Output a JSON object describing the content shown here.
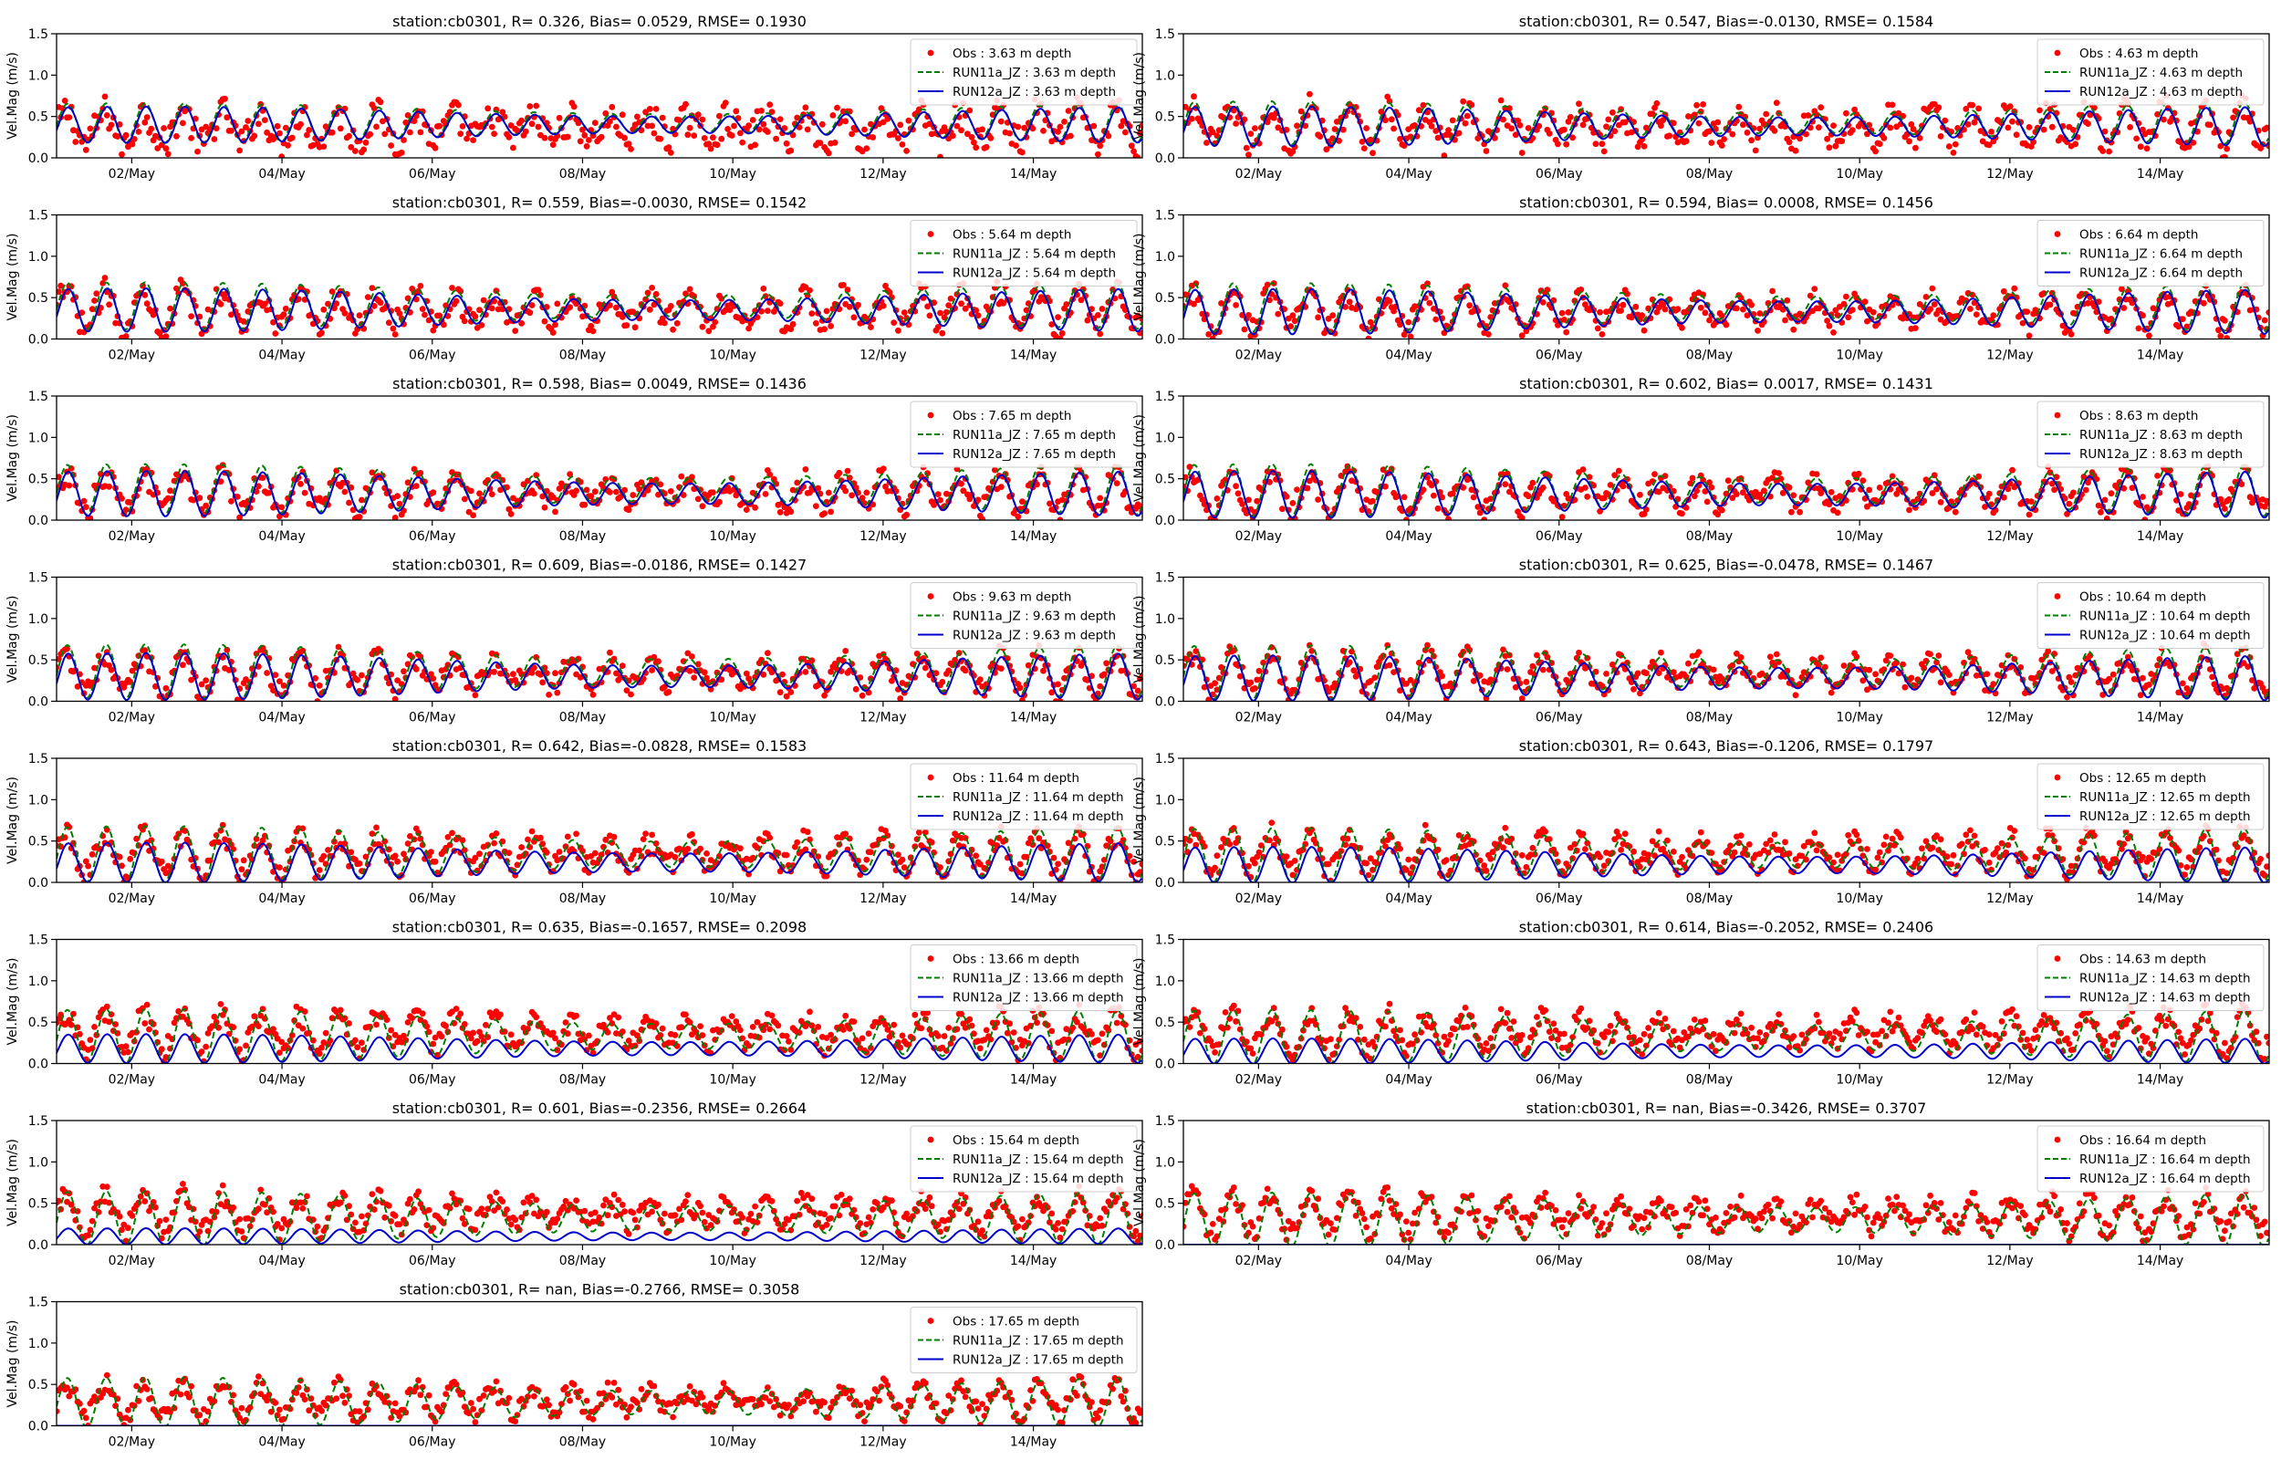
{
  "colors": {
    "obs": "#ff0000",
    "run11a": "#008000",
    "run12a": "#0000cc",
    "axis": "#000000",
    "background": "#ffffff"
  },
  "shared": {
    "type": "scatter+line",
    "ylabel": "Vel.Mag (m/s)",
    "ylim": [
      0,
      1.5
    ],
    "yticks": [
      "0.0",
      "0.5",
      "1.0",
      "1.5"
    ],
    "xlim": [
      1,
      15.45
    ],
    "xtick_values": [
      2,
      4,
      6,
      8,
      10,
      12,
      14
    ],
    "xtick_labels": [
      "02/May",
      "04/May",
      "06/May",
      "08/May",
      "10/May",
      "12/May",
      "14/May"
    ],
    "legend_position": "top-right",
    "grid": false
  },
  "chart_data": [
    {
      "title": "station:cb0301, R= 0.326, Bias= 0.0529, RMSE= 0.1930",
      "depth": 3.63,
      "legend": [
        "Obs : 3.63 m depth",
        "RUN11a_JZ : 3.63 m depth",
        "RUN12a_JZ : 3.63 m depth"
      ],
      "series": [
        {
          "name": "Obs : 3.63 m depth",
          "mean": 0.36,
          "amp": 0.18,
          "noise": 0.2
        },
        {
          "name": "RUN11a_JZ : 3.63 m depth",
          "mean": 0.42,
          "amp": 0.22
        },
        {
          "name": "RUN12a_JZ : 3.63 m depth",
          "mean": 0.4,
          "amp": 0.2
        }
      ]
    },
    {
      "title": "station:cb0301, R= 0.547, Bias=-0.0130, RMSE= 0.1584",
      "depth": 4.63,
      "legend": [
        "Obs : 4.63 m depth",
        "RUN11a_JZ : 4.63 m depth",
        "RUN12a_JZ : 4.63 m depth"
      ],
      "series": [
        {
          "name": "Obs : 4.63 m depth",
          "mean": 0.38,
          "amp": 0.2,
          "noise": 0.18
        },
        {
          "name": "RUN11a_JZ : 4.63 m depth",
          "mean": 0.42,
          "amp": 0.24
        },
        {
          "name": "RUN12a_JZ : 4.63 m depth",
          "mean": 0.38,
          "amp": 0.22
        }
      ]
    },
    {
      "title": "station:cb0301, R= 0.559, Bias=-0.0030, RMSE= 0.1542",
      "depth": 5.64,
      "legend": [
        "Obs : 5.64 m depth",
        "RUN11a_JZ : 5.64 m depth",
        "RUN12a_JZ : 5.64 m depth"
      ],
      "series": [
        {
          "name": "Obs : 5.64 m depth",
          "mean": 0.36,
          "amp": 0.2,
          "noise": 0.16
        },
        {
          "name": "RUN11a_JZ : 5.64 m depth",
          "mean": 0.4,
          "amp": 0.26
        },
        {
          "name": "RUN12a_JZ : 5.64 m depth",
          "mean": 0.35,
          "amp": 0.24
        }
      ]
    },
    {
      "title": "station:cb0301, R= 0.594, Bias= 0.0008, RMSE= 0.1456",
      "depth": 6.64,
      "legend": [
        "Obs : 6.64 m depth",
        "RUN11a_JZ : 6.64 m depth",
        "RUN12a_JZ : 6.64 m depth"
      ],
      "series": [
        {
          "name": "Obs : 6.64 m depth",
          "mean": 0.34,
          "amp": 0.2,
          "noise": 0.15
        },
        {
          "name": "RUN11a_JZ : 6.64 m depth",
          "mean": 0.38,
          "amp": 0.27
        },
        {
          "name": "RUN12a_JZ : 6.64 m depth",
          "mean": 0.33,
          "amp": 0.25
        }
      ]
    },
    {
      "title": "station:cb0301, R= 0.598, Bias= 0.0049, RMSE= 0.1436",
      "depth": 7.65,
      "legend": [
        "Obs : 7.65 m depth",
        "RUN11a_JZ : 7.65 m depth",
        "RUN12a_JZ : 7.65 m depth"
      ],
      "series": [
        {
          "name": "Obs : 7.65 m depth",
          "mean": 0.33,
          "amp": 0.2,
          "noise": 0.15
        },
        {
          "name": "RUN11a_JZ : 7.65 m depth",
          "mean": 0.37,
          "amp": 0.28
        },
        {
          "name": "RUN12a_JZ : 7.65 m depth",
          "mean": 0.32,
          "amp": 0.25
        }
      ]
    },
    {
      "title": "station:cb0301, R= 0.602, Bias= 0.0017, RMSE= 0.1431",
      "depth": 8.63,
      "legend": [
        "Obs : 8.63 m depth",
        "RUN11a_JZ : 8.63 m depth",
        "RUN12a_JZ : 8.63 m depth"
      ],
      "series": [
        {
          "name": "Obs : 8.63 m depth",
          "mean": 0.33,
          "amp": 0.2,
          "noise": 0.15
        },
        {
          "name": "RUN11a_JZ : 8.63 m depth",
          "mean": 0.36,
          "amp": 0.29
        },
        {
          "name": "RUN12a_JZ : 8.63 m depth",
          "mean": 0.31,
          "amp": 0.26
        }
      ]
    },
    {
      "title": "station:cb0301, R= 0.609, Bias=-0.0186, RMSE= 0.1427",
      "depth": 9.63,
      "legend": [
        "Obs : 9.63 m depth",
        "RUN11a_JZ : 9.63 m depth",
        "RUN12a_JZ : 9.63 m depth"
      ],
      "series": [
        {
          "name": "Obs : 9.63 m depth",
          "mean": 0.33,
          "amp": 0.21,
          "noise": 0.14
        },
        {
          "name": "RUN11a_JZ : 9.63 m depth",
          "mean": 0.36,
          "amp": 0.3
        },
        {
          "name": "RUN12a_JZ : 9.63 m depth",
          "mean": 0.3,
          "amp": 0.26
        }
      ]
    },
    {
      "title": "station:cb0301, R= 0.625, Bias=-0.0478, RMSE= 0.1467",
      "depth": 10.64,
      "legend": [
        "Obs : 10.64 m depth",
        "RUN11a_JZ : 10.64 m depth",
        "RUN12a_JZ : 10.64 m depth"
      ],
      "series": [
        {
          "name": "Obs : 10.64 m depth",
          "mean": 0.34,
          "amp": 0.21,
          "noise": 0.14
        },
        {
          "name": "RUN11a_JZ : 10.64 m depth",
          "mean": 0.35,
          "amp": 0.3
        },
        {
          "name": "RUN12a_JZ : 10.64 m depth",
          "mean": 0.28,
          "amp": 0.25
        }
      ]
    },
    {
      "title": "station:cb0301, R= 0.642, Bias=-0.0828, RMSE= 0.1583",
      "depth": 11.64,
      "legend": [
        "Obs : 11.64 m depth",
        "RUN11a_JZ : 11.64 m depth",
        "RUN12a_JZ : 11.64 m depth"
      ],
      "series": [
        {
          "name": "Obs : 11.64 m depth",
          "mean": 0.35,
          "amp": 0.21,
          "noise": 0.14
        },
        {
          "name": "RUN11a_JZ : 11.64 m depth",
          "mean": 0.34,
          "amp": 0.31
        },
        {
          "name": "RUN12a_JZ : 11.64 m depth",
          "mean": 0.24,
          "amp": 0.22
        }
      ]
    },
    {
      "title": "station:cb0301, R= 0.643, Bias=-0.1206, RMSE= 0.1797",
      "depth": 12.65,
      "legend": [
        "Obs : 12.65 m depth",
        "RUN11a_JZ : 12.65 m depth",
        "RUN12a_JZ : 12.65 m depth"
      ],
      "series": [
        {
          "name": "Obs : 12.65 m depth",
          "mean": 0.36,
          "amp": 0.21,
          "noise": 0.14
        },
        {
          "name": "RUN11a_JZ : 12.65 m depth",
          "mean": 0.33,
          "amp": 0.3
        },
        {
          "name": "RUN12a_JZ : 12.65 m depth",
          "mean": 0.21,
          "amp": 0.2
        }
      ]
    },
    {
      "title": "station:cb0301, R= 0.635, Bias=-0.1657, RMSE= 0.2098",
      "depth": 13.66,
      "legend": [
        "Obs : 13.66 m depth",
        "RUN11a_JZ : 13.66 m depth",
        "RUN12a_JZ : 13.66 m depth"
      ],
      "series": [
        {
          "name": "Obs : 13.66 m depth",
          "mean": 0.38,
          "amp": 0.21,
          "noise": 0.14
        },
        {
          "name": "RUN11a_JZ : 13.66 m depth",
          "mean": 0.33,
          "amp": 0.3
        },
        {
          "name": "RUN12a_JZ : 13.66 m depth",
          "mean": 0.18,
          "amp": 0.16
        }
      ]
    },
    {
      "title": "station:cb0301, R= 0.614, Bias=-0.2052, RMSE= 0.2406",
      "depth": 14.63,
      "legend": [
        "Obs : 14.63 m depth",
        "RUN11a_JZ : 14.63 m depth",
        "RUN12a_JZ : 14.63 m depth"
      ],
      "series": [
        {
          "name": "Obs : 14.63 m depth",
          "mean": 0.38,
          "amp": 0.21,
          "noise": 0.14
        },
        {
          "name": "RUN11a_JZ : 14.63 m depth",
          "mean": 0.32,
          "amp": 0.3
        },
        {
          "name": "RUN12a_JZ : 14.63 m depth",
          "mean": 0.15,
          "amp": 0.14
        }
      ]
    },
    {
      "title": "station:cb0301, R= 0.601, Bias=-0.2356, RMSE= 0.2664",
      "depth": 15.64,
      "legend": [
        "Obs : 15.64 m depth",
        "RUN11a_JZ : 15.64 m depth",
        "RUN12a_JZ : 15.64 m depth"
      ],
      "series": [
        {
          "name": "Obs : 15.64 m depth",
          "mean": 0.38,
          "amp": 0.2,
          "noise": 0.14
        },
        {
          "name": "RUN11a_JZ : 15.64 m depth",
          "mean": 0.32,
          "amp": 0.3
        },
        {
          "name": "RUN12a_JZ : 15.64 m depth",
          "mean": 0.1,
          "amp": 0.09
        }
      ]
    },
    {
      "title": "station:cb0301, R=   nan, Bias=-0.3426, RMSE= 0.3707",
      "depth": 16.64,
      "legend": [
        "Obs : 16.64 m depth",
        "RUN11a_JZ : 16.64 m depth",
        "RUN12a_JZ : 16.64 m depth"
      ],
      "series": [
        {
          "name": "Obs : 16.64 m depth",
          "mean": 0.36,
          "amp": 0.2,
          "noise": 0.14
        },
        {
          "name": "RUN11a_JZ : 16.64 m depth",
          "mean": 0.3,
          "amp": 0.3
        },
        {
          "name": "RUN12a_JZ : 16.64 m depth",
          "mean": 0.0,
          "amp": 0.0
        }
      ]
    },
    {
      "title": "station:cb0301, R=   nan, Bias=-0.2766, RMSE= 0.3058",
      "depth": 17.65,
      "legend": [
        "Obs : 17.65 m depth",
        "RUN11a_JZ : 17.65 m depth",
        "RUN12a_JZ : 17.65 m depth"
      ],
      "series": [
        {
          "name": "Obs : 17.65 m depth",
          "mean": 0.3,
          "amp": 0.18,
          "noise": 0.13
        },
        {
          "name": "RUN11a_JZ : 17.65 m depth",
          "mean": 0.28,
          "amp": 0.28
        },
        {
          "name": "RUN12a_JZ : 17.65 m depth",
          "mean": 0.0,
          "amp": 0.0
        }
      ]
    }
  ]
}
